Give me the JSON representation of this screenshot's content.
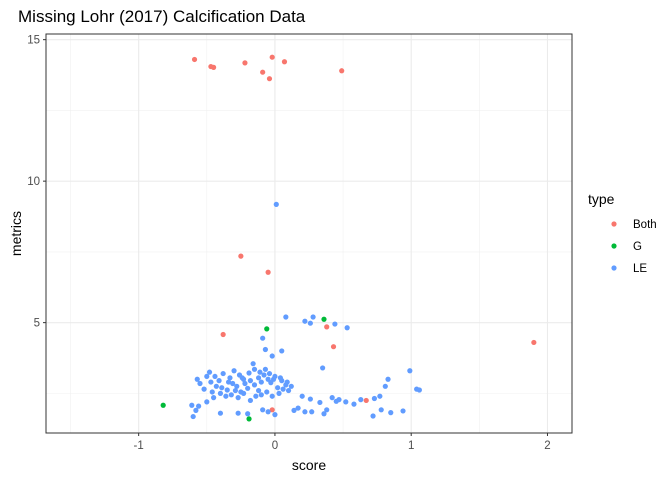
{
  "chart_data": {
    "type": "scatter",
    "title": "Missing Lohr (2017) Calcification Data",
    "xlabel": "score",
    "ylabel": "metrics",
    "xlim": [
      -1.68,
      2.18
    ],
    "ylim": [
      1.1,
      15.2
    ],
    "xticks": [
      -1,
      0,
      1,
      2
    ],
    "yticks": [
      5,
      10,
      15
    ],
    "grid": true,
    "legend": {
      "title": "type",
      "position": "right"
    },
    "series": [
      {
        "name": "Both",
        "color": "#F8766D",
        "points": [
          [
            -0.59,
            14.3
          ],
          [
            -0.47,
            14.05
          ],
          [
            -0.45,
            14.02
          ],
          [
            -0.22,
            14.18
          ],
          [
            -0.09,
            13.85
          ],
          [
            -0.04,
            13.62
          ],
          [
            -0.02,
            14.38
          ],
          [
            0.07,
            14.22
          ],
          [
            0.49,
            13.9
          ],
          [
            -0.25,
            7.35
          ],
          [
            -0.05,
            6.78
          ],
          [
            -0.38,
            4.58
          ],
          [
            0.38,
            4.85
          ],
          [
            0.43,
            4.15
          ],
          [
            1.9,
            4.3
          ],
          [
            0.67,
            2.25
          ],
          [
            -0.02,
            1.92
          ]
        ]
      },
      {
        "name": "G",
        "color": "#00BA38",
        "points": [
          [
            0.36,
            5.12
          ],
          [
            -0.06,
            4.78
          ],
          [
            -0.82,
            2.08
          ],
          [
            -0.19,
            1.6
          ]
        ]
      },
      {
        "name": "LE",
        "color": "#619CFF",
        "points": [
          [
            0.01,
            9.18
          ],
          [
            0.08,
            5.2
          ],
          [
            0.28,
            5.2
          ],
          [
            0.22,
            5.05
          ],
          [
            0.26,
            4.98
          ],
          [
            0.44,
            4.95
          ],
          [
            0.53,
            4.82
          ],
          [
            0.05,
            4.0
          ],
          [
            -0.07,
            4.05
          ],
          [
            -0.02,
            3.82
          ],
          [
            -0.09,
            4.45
          ],
          [
            0.35,
            3.4
          ],
          [
            -0.16,
            3.55
          ],
          [
            0.99,
            3.3
          ],
          [
            0.83,
            3.0
          ],
          [
            0.81,
            2.75
          ],
          [
            1.04,
            2.65
          ],
          [
            1.06,
            2.62
          ],
          [
            0.77,
            2.4
          ],
          [
            0.73,
            2.32
          ],
          [
            0.63,
            2.28
          ],
          [
            0.58,
            2.12
          ],
          [
            0.52,
            2.2
          ],
          [
            0.47,
            2.28
          ],
          [
            0.42,
            2.35
          ],
          [
            0.45,
            2.22
          ],
          [
            0.38,
            1.92
          ],
          [
            0.33,
            2.18
          ],
          [
            0.36,
            1.78
          ],
          [
            0.26,
            2.3
          ],
          [
            0.2,
            2.4
          ],
          [
            0.17,
            1.98
          ],
          [
            0.22,
            1.85
          ],
          [
            0.14,
            1.9
          ],
          [
            0.27,
            1.85
          ],
          [
            0.94,
            1.88
          ],
          [
            0.85,
            1.82
          ],
          [
            0.72,
            1.7
          ],
          [
            0.78,
            1.92
          ],
          [
            -0.58,
            1.9
          ],
          [
            -0.56,
            2.05
          ],
          [
            -0.6,
            1.68
          ],
          [
            -0.61,
            2.08
          ],
          [
            -0.4,
            1.8
          ],
          [
            -0.27,
            1.8
          ],
          [
            -0.2,
            1.78
          ],
          [
            -0.05,
            1.85
          ],
          [
            0.0,
            1.75
          ],
          [
            -0.09,
            1.92
          ],
          [
            -0.5,
            2.2
          ],
          [
            -0.45,
            2.35
          ],
          [
            -0.4,
            2.5
          ],
          [
            -0.35,
            2.62
          ],
          [
            -0.32,
            2.45
          ],
          [
            -0.28,
            2.75
          ],
          [
            -0.25,
            2.55
          ],
          [
            -0.22,
            2.85
          ],
          [
            -0.2,
            2.68
          ],
          [
            -0.18,
            2.95
          ],
          [
            -0.15,
            2.8
          ],
          [
            -0.12,
            3.05
          ],
          [
            -0.1,
            2.9
          ],
          [
            -0.08,
            3.15
          ],
          [
            -0.05,
            3.0
          ],
          [
            -0.03,
            2.88
          ],
          [
            0.0,
            3.1
          ],
          [
            0.02,
            2.7
          ],
          [
            0.05,
            2.95
          ],
          [
            0.08,
            2.8
          ],
          [
            0.1,
            2.6
          ],
          [
            0.12,
            2.75
          ],
          [
            -0.48,
            3.25
          ],
          [
            -0.44,
            3.1
          ],
          [
            -0.41,
            2.95
          ],
          [
            -0.38,
            3.2
          ],
          [
            -0.33,
            3.05
          ],
          [
            -0.3,
            3.3
          ],
          [
            -0.26,
            3.15
          ],
          [
            -0.23,
            3.0
          ],
          [
            -0.19,
            3.22
          ],
          [
            -0.15,
            3.35
          ],
          [
            -0.12,
            2.6
          ],
          [
            -0.1,
            2.45
          ],
          [
            -0.06,
            2.55
          ],
          [
            -0.02,
            2.4
          ],
          [
            0.03,
            2.5
          ],
          [
            0.06,
            2.65
          ],
          [
            -0.55,
            2.85
          ],
          [
            -0.52,
            2.65
          ],
          [
            -0.47,
            2.9
          ],
          [
            -0.43,
            2.75
          ],
          [
            -0.36,
            2.4
          ],
          [
            -0.31,
            2.85
          ],
          [
            -0.27,
            2.35
          ],
          [
            -0.23,
            2.5
          ],
          [
            -0.18,
            2.25
          ],
          [
            -0.14,
            2.4
          ],
          [
            -0.11,
            3.25
          ],
          [
            -0.07,
            3.35
          ],
          [
            -0.04,
            3.2
          ],
          [
            -0.01,
            3.0
          ],
          [
            0.04,
            3.05
          ],
          [
            0.09,
            2.9
          ],
          [
            -0.57,
            3.0
          ],
          [
            -0.5,
            3.1
          ],
          [
            -0.46,
            2.55
          ],
          [
            -0.39,
            2.7
          ],
          [
            -0.34,
            2.9
          ],
          [
            -0.29,
            2.6
          ],
          [
            -0.24,
            3.05
          ]
        ]
      }
    ]
  }
}
